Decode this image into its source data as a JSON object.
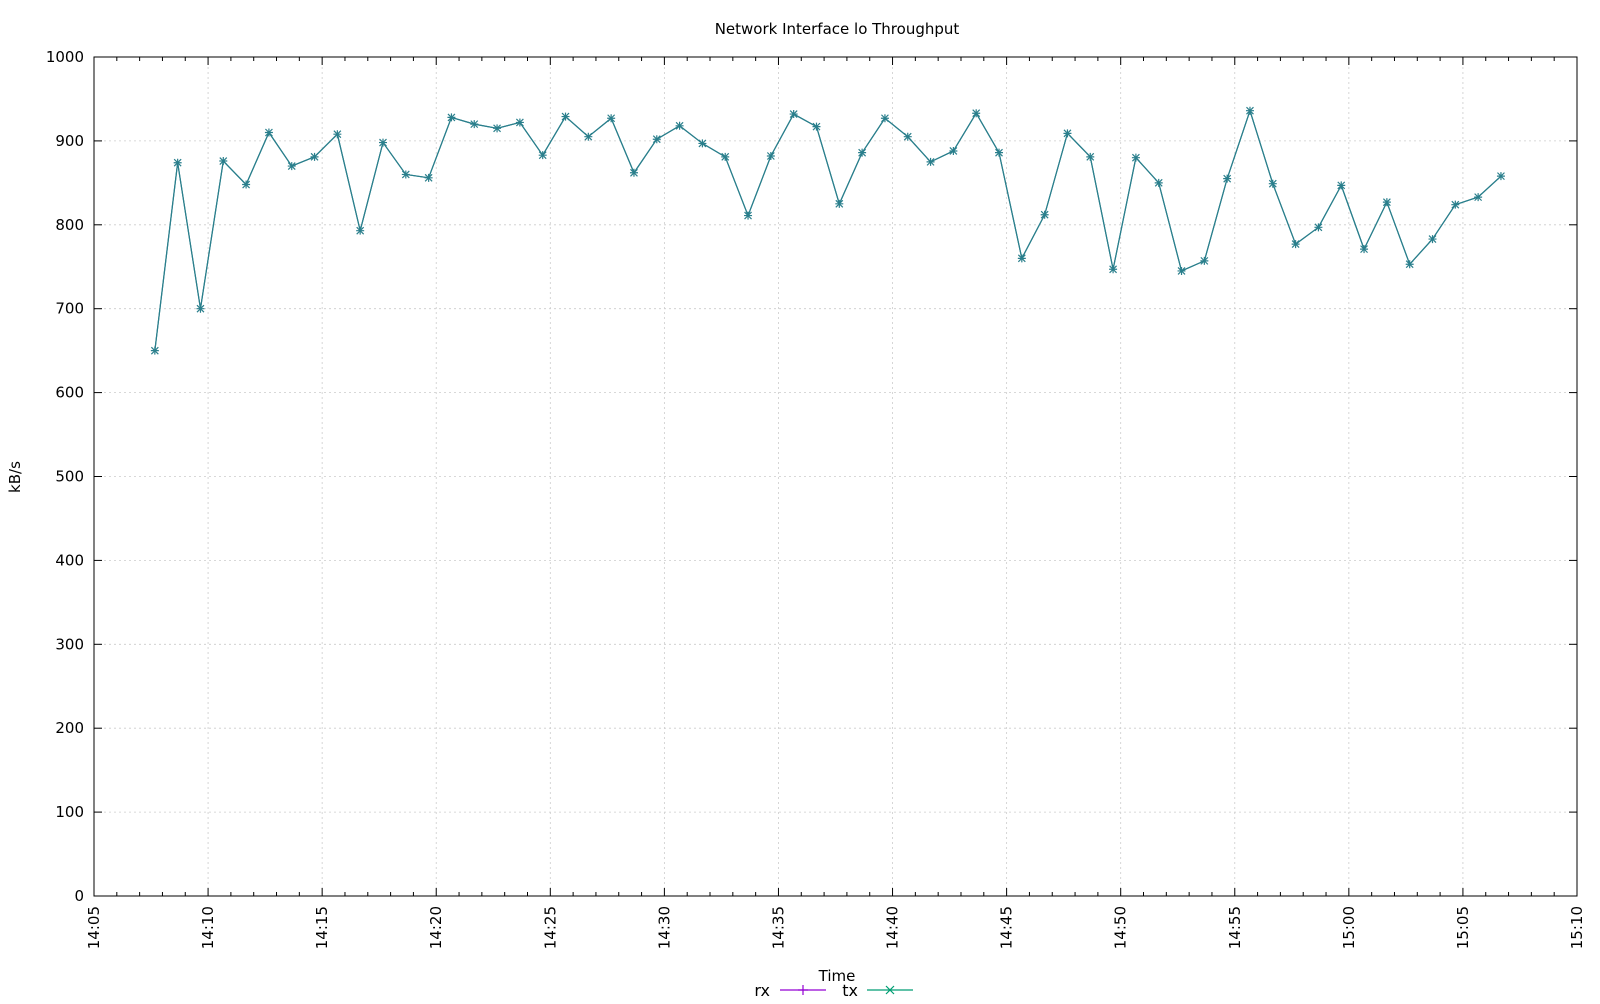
{
  "chart_data": {
    "type": "line",
    "title": "Network Interface lo Throughput",
    "xlabel": "Time",
    "ylabel": "kB/s",
    "xlim": [
      "14:05",
      "15:10"
    ],
    "ylim": [
      0,
      1000
    ],
    "x_tick_labels": [
      "14:05",
      "14:10",
      "14:15",
      "14:20",
      "14:25",
      "14:30",
      "14:35",
      "14:40",
      "14:45",
      "14:50",
      "14:55",
      "15:00",
      "15:05",
      "15:10"
    ],
    "y_tick_labels": [
      "0",
      "100",
      "200",
      "300",
      "400",
      "500",
      "600",
      "700",
      "800",
      "900",
      "1000"
    ],
    "grid": true,
    "legend_position": "bottom-center",
    "series": [
      {
        "name": "rx",
        "color": "#9400d3",
        "marker": "plus",
        "x": [
          "14:07:40",
          "14:08:40",
          "14:09:40",
          "14:10:40",
          "14:11:40",
          "14:12:40",
          "14:13:40",
          "14:14:40",
          "14:15:40",
          "14:16:40",
          "14:17:40",
          "14:18:40",
          "14:19:40",
          "14:20:40",
          "14:21:40",
          "14:22:40",
          "14:23:40",
          "14:24:40",
          "14:25:40",
          "14:26:40",
          "14:27:40",
          "14:28:40",
          "14:29:40",
          "14:30:40",
          "14:31:40",
          "14:32:40",
          "14:33:40",
          "14:34:40",
          "14:35:40",
          "14:36:40",
          "14:37:40",
          "14:38:40",
          "14:39:40",
          "14:40:40",
          "14:41:40",
          "14:42:40",
          "14:43:40",
          "14:44:40",
          "14:45:40",
          "14:46:40",
          "14:47:40",
          "14:48:40",
          "14:49:40",
          "14:50:40",
          "14:51:40",
          "14:52:40",
          "14:53:40",
          "14:54:40",
          "14:55:40",
          "14:56:40",
          "14:57:40",
          "14:58:40",
          "14:59:40",
          "15:00:40",
          "15:01:40",
          "15:02:40",
          "15:03:40",
          "15:04:40",
          "15:05:40",
          "15:06:40"
        ],
        "values": [
          650,
          874,
          700,
          876,
          848,
          910,
          870,
          881,
          908,
          793,
          898,
          860,
          856,
          928,
          920,
          915,
          922,
          883,
          929,
          905,
          927,
          862,
          902,
          918,
          897,
          881,
          811,
          882,
          932,
          917,
          825,
          886,
          927,
          905,
          875,
          888,
          933,
          886,
          760,
          812,
          909,
          881,
          747,
          880,
          850,
          745,
          757,
          855,
          936,
          849,
          777,
          797,
          847,
          771,
          827,
          753,
          783,
          824,
          833,
          858
        ]
      },
      {
        "name": "tx",
        "color": "#009e73",
        "marker": "cross",
        "x": [
          "14:07:40",
          "14:08:40",
          "14:09:40",
          "14:10:40",
          "14:11:40",
          "14:12:40",
          "14:13:40",
          "14:14:40",
          "14:15:40",
          "14:16:40",
          "14:17:40",
          "14:18:40",
          "14:19:40",
          "14:20:40",
          "14:21:40",
          "14:22:40",
          "14:23:40",
          "14:24:40",
          "14:25:40",
          "14:26:40",
          "14:27:40",
          "14:28:40",
          "14:29:40",
          "14:30:40",
          "14:31:40",
          "14:32:40",
          "14:33:40",
          "14:34:40",
          "14:35:40",
          "14:36:40",
          "14:37:40",
          "14:38:40",
          "14:39:40",
          "14:40:40",
          "14:41:40",
          "14:42:40",
          "14:43:40",
          "14:44:40",
          "14:45:40",
          "14:46:40",
          "14:47:40",
          "14:48:40",
          "14:49:40",
          "14:50:40",
          "14:51:40",
          "14:52:40",
          "14:53:40",
          "14:54:40",
          "14:55:40",
          "14:56:40",
          "14:57:40",
          "14:58:40",
          "14:59:40",
          "15:00:40",
          "15:01:40",
          "15:02:40",
          "15:03:40",
          "15:04:40",
          "15:05:40",
          "15:06:40"
        ],
        "values": [
          650,
          874,
          700,
          876,
          848,
          910,
          870,
          881,
          908,
          793,
          898,
          860,
          856,
          928,
          920,
          915,
          922,
          883,
          929,
          905,
          927,
          862,
          902,
          918,
          897,
          881,
          811,
          882,
          932,
          917,
          825,
          886,
          927,
          905,
          875,
          888,
          933,
          886,
          760,
          812,
          909,
          881,
          747,
          880,
          850,
          745,
          757,
          855,
          936,
          849,
          777,
          797,
          847,
          771,
          827,
          753,
          783,
          824,
          833,
          858
        ]
      }
    ],
    "colors": {
      "overlap_line": "#2a7f8c",
      "grid": "#cccccc",
      "axis": "#000000"
    }
  }
}
